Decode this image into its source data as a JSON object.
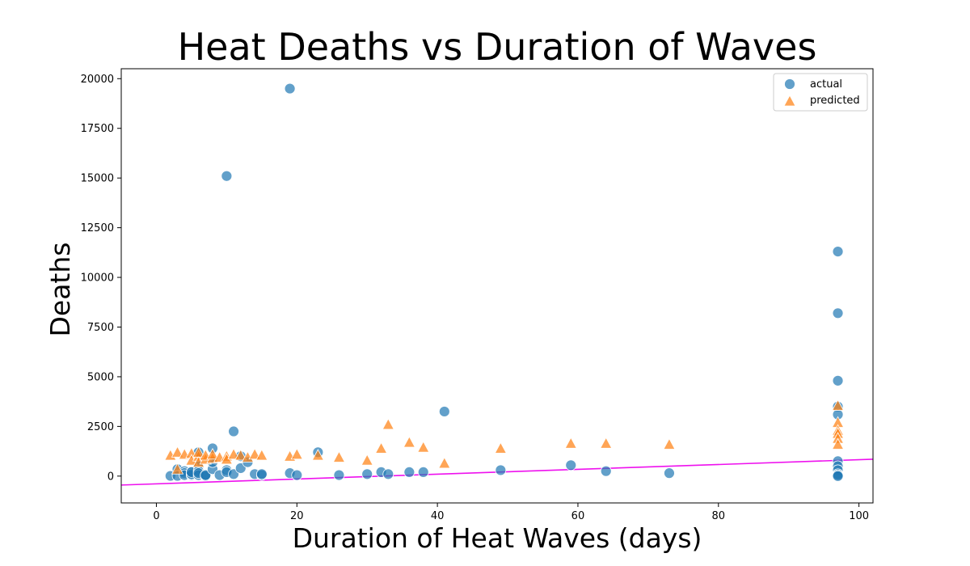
{
  "chart_data": {
    "type": "scatter",
    "title": "Heat Deaths vs Duration of Waves",
    "xlabel": "Duration of Heat Waves (days)",
    "ylabel": "Deaths",
    "xlim": [
      -5,
      102
    ],
    "ylim": [
      -1350,
      20500
    ],
    "xticks": [
      0,
      20,
      40,
      60,
      80,
      100
    ],
    "yticks": [
      0,
      2500,
      5000,
      7500,
      10000,
      12500,
      15000,
      17500,
      20000
    ],
    "grid": false,
    "legend_position": "top-right",
    "colors": {
      "actual": "#1f77b4",
      "predicted": "#ff7f0e",
      "fit_line": "#ee11ee"
    },
    "fit_line": {
      "x": [
        -5,
        102
      ],
      "y": [
        -450,
        850
      ]
    },
    "series": [
      {
        "name": "actual",
        "marker": "circle",
        "x": [
          2,
          3,
          3,
          4,
          4,
          4,
          5,
          5,
          5,
          5,
          6,
          6,
          6,
          6,
          6,
          7,
          7,
          7,
          8,
          8,
          8,
          9,
          10,
          10,
          10,
          11,
          11,
          12,
          12,
          13,
          14,
          15,
          15,
          19,
          19,
          20,
          23,
          26,
          30,
          32,
          33,
          36,
          38,
          41,
          49,
          59,
          64,
          73,
          97,
          97,
          97,
          97,
          97,
          97,
          97,
          97,
          97,
          97,
          97
        ],
        "y": [
          10,
          350,
          10,
          250,
          150,
          50,
          200,
          50,
          100,
          200,
          1200,
          500,
          250,
          50,
          150,
          30,
          10,
          50,
          1400,
          350,
          700,
          50,
          15100,
          300,
          200,
          2250,
          100,
          400,
          1000,
          700,
          100,
          50,
          100,
          19500,
          150,
          50,
          1200,
          50,
          100,
          200,
          100,
          200,
          200,
          3250,
          300,
          550,
          250,
          150,
          11300,
          8200,
          4800,
          3500,
          3100,
          750,
          500,
          300,
          100,
          50,
          0
        ]
      },
      {
        "name": "predicted",
        "marker": "triangle",
        "x": [
          2,
          3,
          3,
          4,
          5,
          5,
          6,
          6,
          6,
          7,
          7,
          8,
          8,
          9,
          10,
          10,
          11,
          12,
          13,
          14,
          15,
          19,
          20,
          23,
          26,
          30,
          32,
          33,
          36,
          38,
          41,
          49,
          59,
          64,
          73,
          97,
          97,
          97,
          97,
          97,
          97
        ],
        "y": [
          1050,
          1200,
          350,
          1100,
          1150,
          800,
          1000,
          700,
          1200,
          850,
          1050,
          900,
          1100,
          950,
          1000,
          850,
          1100,
          1050,
          950,
          1100,
          1050,
          1000,
          1100,
          1050,
          950,
          800,
          1400,
          2600,
          1700,
          1450,
          650,
          1400,
          1650,
          1650,
          1600,
          3550,
          2700,
          2300,
          2150,
          1900,
          1600
        ]
      }
    ],
    "legend": [
      {
        "label": "actual",
        "marker": "circle"
      },
      {
        "label": "predicted",
        "marker": "triangle"
      }
    ]
  }
}
